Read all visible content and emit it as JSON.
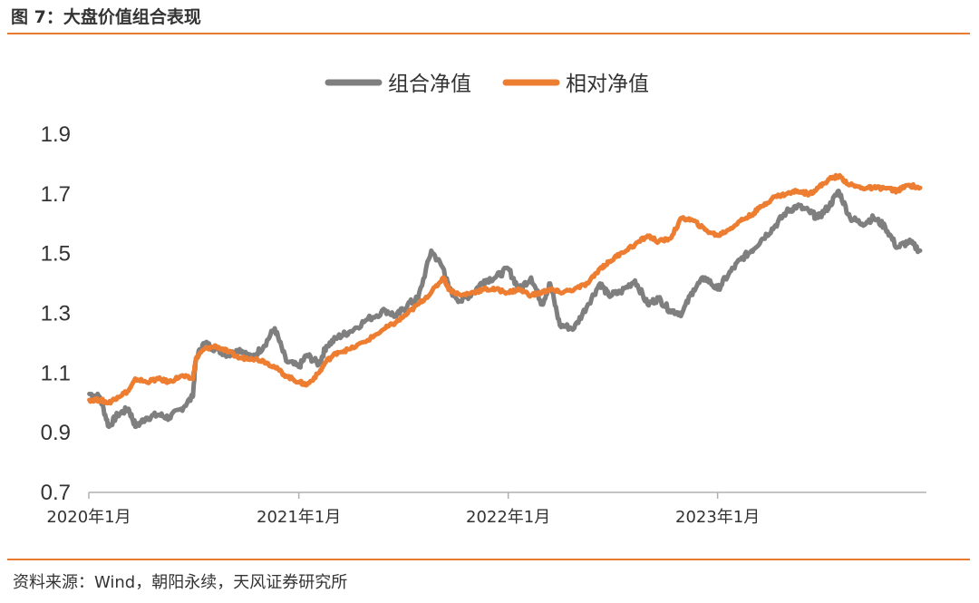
{
  "figure": {
    "title": "图 7：大盘价值组合表现",
    "source": "资料来源：Wind，朝阳永续，天风证券研究所"
  },
  "colors": {
    "gray": "#7f7f7f",
    "orange": "#ed7d31",
    "rule": "#e87b2f"
  },
  "chart_data": {
    "type": "line",
    "ylim": [
      0.7,
      1.9
    ],
    "yticks": [
      0.7,
      0.9,
      1.1,
      1.3,
      1.5,
      1.7,
      1.9
    ],
    "ytick_labels": [
      "0.7",
      "0.9",
      "1.1",
      "1.3",
      "1.5",
      "1.7",
      "1.9"
    ],
    "xlim": [
      "2020-01",
      "2023-12"
    ],
    "xticks": [
      "2020-01",
      "2021-01",
      "2022-01",
      "2023-01"
    ],
    "xtick_labels": [
      "2020年1月",
      "2021年1月",
      "2022年1月",
      "2023年1月"
    ],
    "legend_position": "top-center",
    "grid": false,
    "series": [
      {
        "name": "组合净值",
        "color": "#7f7f7f",
        "x": [
          "2020-01-02",
          "2020-01-20",
          "2020-02-05",
          "2020-02-20",
          "2020-03-10",
          "2020-03-23",
          "2020-04-10",
          "2020-05-01",
          "2020-05-20",
          "2020-06-10",
          "2020-06-30",
          "2020-07-06",
          "2020-07-20",
          "2020-08-10",
          "2020-09-01",
          "2020-09-20",
          "2020-10-10",
          "2020-11-01",
          "2020-11-20",
          "2020-12-10",
          "2021-01-01",
          "2021-01-15",
          "2021-02-05",
          "2021-02-18",
          "2021-03-10",
          "2021-04-01",
          "2021-05-01",
          "2021-06-01",
          "2021-06-20",
          "2021-07-10",
          "2021-07-28",
          "2021-08-20",
          "2021-09-10",
          "2021-09-20",
          "2021-10-10",
          "2021-11-01",
          "2021-11-20",
          "2021-12-10",
          "2022-01-01",
          "2022-01-20",
          "2022-02-10",
          "2022-03-01",
          "2022-03-15",
          "2022-04-01",
          "2022-04-26",
          "2022-05-20",
          "2022-06-10",
          "2022-06-25",
          "2022-07-15",
          "2022-08-10",
          "2022-09-01",
          "2022-09-20",
          "2022-10-10",
          "2022-10-31",
          "2022-11-20",
          "2022-12-10",
          "2023-01-01",
          "2023-01-20",
          "2023-02-10",
          "2023-03-01",
          "2023-03-20",
          "2023-04-10",
          "2023-05-01",
          "2023-05-20",
          "2023-06-10",
          "2023-06-25",
          "2023-07-15",
          "2023-07-31",
          "2023-08-20",
          "2023-09-10",
          "2023-09-30",
          "2023-10-20",
          "2023-11-10",
          "2023-11-30",
          "2023-12-20"
        ],
        "y": [
          1.03,
          1.02,
          0.92,
          0.96,
          0.98,
          0.92,
          0.95,
          0.96,
          0.95,
          0.98,
          1.02,
          1.15,
          1.2,
          1.18,
          1.16,
          1.18,
          1.15,
          1.19,
          1.25,
          1.14,
          1.12,
          1.16,
          1.13,
          1.19,
          1.22,
          1.24,
          1.28,
          1.31,
          1.29,
          1.33,
          1.35,
          1.51,
          1.45,
          1.38,
          1.34,
          1.37,
          1.41,
          1.42,
          1.45,
          1.38,
          1.42,
          1.33,
          1.4,
          1.26,
          1.25,
          1.33,
          1.4,
          1.36,
          1.37,
          1.41,
          1.33,
          1.35,
          1.31,
          1.3,
          1.38,
          1.42,
          1.38,
          1.43,
          1.48,
          1.51,
          1.55,
          1.59,
          1.64,
          1.66,
          1.64,
          1.62,
          1.66,
          1.71,
          1.62,
          1.6,
          1.62,
          1.59,
          1.52,
          1.54,
          1.51
        ]
      },
      {
        "name": "相对净值",
        "color": "#ed7d31",
        "x": [
          "2020-01-02",
          "2020-01-20",
          "2020-02-05",
          "2020-02-20",
          "2020-03-10",
          "2020-03-23",
          "2020-04-10",
          "2020-05-01",
          "2020-05-20",
          "2020-06-10",
          "2020-06-30",
          "2020-07-06",
          "2020-07-20",
          "2020-08-10",
          "2020-09-01",
          "2020-09-20",
          "2020-10-10",
          "2020-11-01",
          "2020-11-20",
          "2020-12-10",
          "2021-01-01",
          "2021-01-15",
          "2021-02-05",
          "2021-02-18",
          "2021-03-10",
          "2021-04-01",
          "2021-05-01",
          "2021-06-01",
          "2021-06-20",
          "2021-07-10",
          "2021-07-28",
          "2021-08-20",
          "2021-09-10",
          "2021-09-20",
          "2021-10-10",
          "2021-11-01",
          "2021-11-20",
          "2021-12-10",
          "2022-01-01",
          "2022-01-20",
          "2022-02-10",
          "2022-03-01",
          "2022-03-15",
          "2022-04-01",
          "2022-04-26",
          "2022-05-20",
          "2022-06-10",
          "2022-06-25",
          "2022-07-15",
          "2022-08-10",
          "2022-09-01",
          "2022-09-20",
          "2022-10-10",
          "2022-10-31",
          "2022-11-20",
          "2022-12-10",
          "2023-01-01",
          "2023-01-20",
          "2023-02-10",
          "2023-03-01",
          "2023-03-20",
          "2023-04-10",
          "2023-05-01",
          "2023-05-20",
          "2023-06-10",
          "2023-06-25",
          "2023-07-15",
          "2023-07-31",
          "2023-08-20",
          "2023-09-10",
          "2023-09-30",
          "2023-10-20",
          "2023-11-10",
          "2023-11-30",
          "2023-12-20"
        ],
        "y": [
          1.01,
          1.01,
          1.0,
          1.02,
          1.04,
          1.08,
          1.07,
          1.08,
          1.07,
          1.09,
          1.08,
          1.15,
          1.18,
          1.19,
          1.17,
          1.15,
          1.15,
          1.14,
          1.12,
          1.09,
          1.07,
          1.06,
          1.1,
          1.14,
          1.17,
          1.18,
          1.21,
          1.25,
          1.27,
          1.3,
          1.33,
          1.37,
          1.42,
          1.38,
          1.36,
          1.37,
          1.38,
          1.38,
          1.37,
          1.38,
          1.36,
          1.37,
          1.38,
          1.37,
          1.38,
          1.4,
          1.45,
          1.47,
          1.5,
          1.53,
          1.56,
          1.54,
          1.55,
          1.62,
          1.61,
          1.58,
          1.56,
          1.58,
          1.61,
          1.63,
          1.66,
          1.69,
          1.7,
          1.71,
          1.7,
          1.72,
          1.75,
          1.76,
          1.73,
          1.72,
          1.72,
          1.72,
          1.71,
          1.73,
          1.72
        ]
      }
    ]
  }
}
